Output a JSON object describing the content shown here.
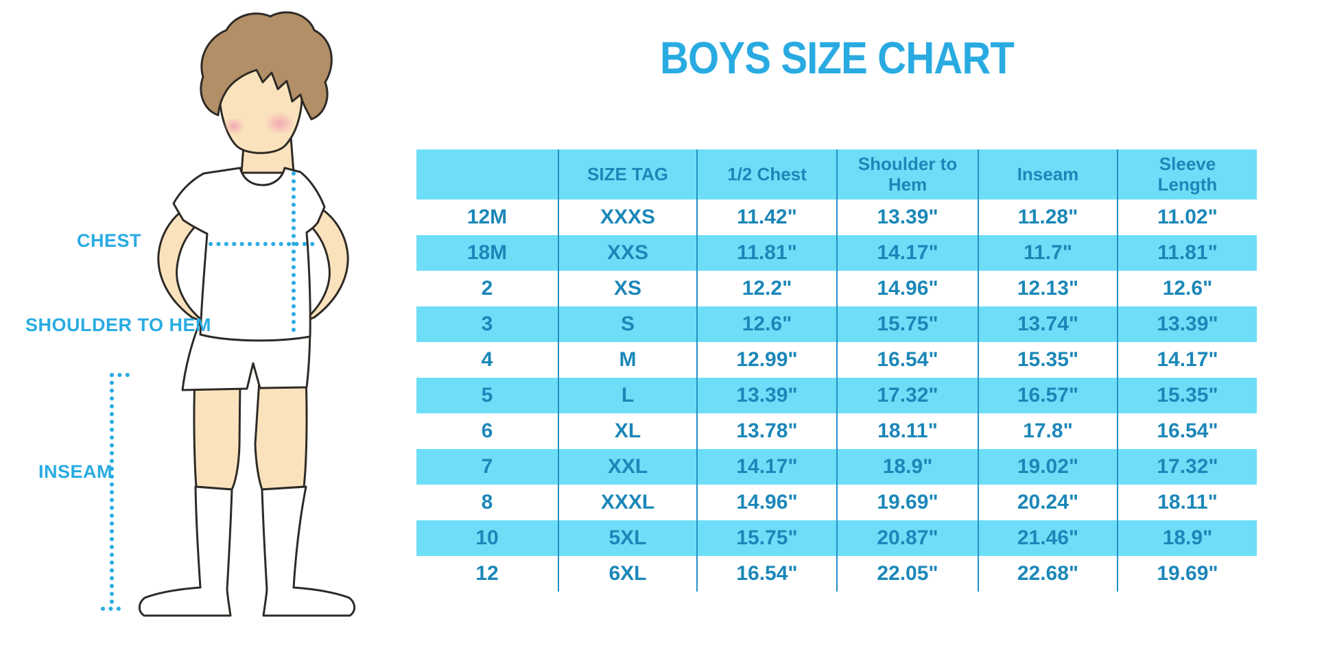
{
  "title": "BOYS SIZE CHART",
  "diagram": {
    "figure": "boy-in-tshirt-shorts-knee-socks",
    "labels": {
      "chest": "CHEST",
      "shoulder_to_hem": "SHOULDER TO HEM",
      "inseam": "INSEAM"
    }
  },
  "chart_data": {
    "type": "table",
    "title": "BOYS SIZE CHART",
    "units": "inches",
    "columns": [
      "",
      "SIZE TAG",
      "1/2 Chest",
      "Shoulder to Hem",
      "Inseam",
      "Sleeve Length"
    ],
    "rows": [
      [
        "12M",
        "XXXS",
        "11.42\"",
        "13.39\"",
        "11.28\"",
        "11.02\""
      ],
      [
        "18M",
        "XXS",
        "11.81\"",
        "14.17\"",
        "11.7\"",
        "11.81\""
      ],
      [
        "2",
        "XS",
        "12.2\"",
        "14.96\"",
        "12.13\"",
        "12.6\""
      ],
      [
        "3",
        "S",
        "12.6\"",
        "15.75\"",
        "13.74\"",
        "13.39\""
      ],
      [
        "4",
        "M",
        "12.99\"",
        "16.54\"",
        "15.35\"",
        "14.17\""
      ],
      [
        "5",
        "L",
        "13.39\"",
        "17.32\"",
        "16.57\"",
        "15.35\""
      ],
      [
        "6",
        "XL",
        "13.78\"",
        "18.11\"",
        "17.8\"",
        "16.54\""
      ],
      [
        "7",
        "XXL",
        "14.17\"",
        "18.9\"",
        "19.02\"",
        "17.32\""
      ],
      [
        "8",
        "XXXL",
        "14.96\"",
        "19.69\"",
        "20.24\"",
        "18.11\""
      ],
      [
        "10",
        "5XL",
        "15.75\"",
        "20.87\"",
        "21.46\"",
        "18.9\""
      ],
      [
        "12",
        "6XL",
        "16.54\"",
        "22.05\"",
        "22.68\"",
        "19.69\""
      ]
    ]
  },
  "colors": {
    "accent": "#29abe2",
    "tabletext": "#1b87b8",
    "stripe": "#6edef8",
    "divider": "#2191c5",
    "skin": "#fae3bc",
    "hair": "#b28f66",
    "blush": "#f29fb3",
    "outline": "#2e2a26"
  }
}
